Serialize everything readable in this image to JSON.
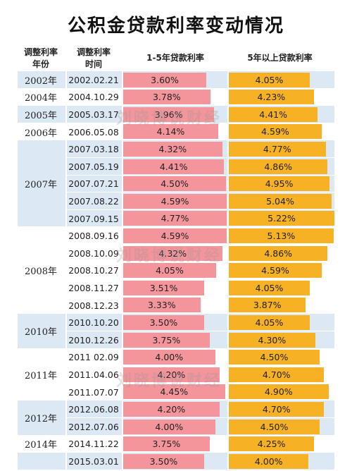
{
  "title": "公积金贷款利率变动情况",
  "headers": {
    "year_line1": "调整利率",
    "year_line2": "年份",
    "date_line1": "调整利率",
    "date_line2": "时间",
    "short": "1-5年贷款利率",
    "long": "5年以上贷款利率"
  },
  "watermark": "刘晓博说财经",
  "colors": {
    "short_bar": "#f4959b",
    "long_bar": "#f7b125",
    "band_blue": "#dce8f3"
  },
  "chart_data": {
    "type": "bar",
    "orientation": "horizontal",
    "title": "公积金贷款利率变动情况",
    "groups": [
      {
        "year": "2002年",
        "rows": [
          0
        ]
      },
      {
        "year": "2004年",
        "rows": [
          1
        ]
      },
      {
        "year": "2005年",
        "rows": [
          2
        ]
      },
      {
        "year": "2006年",
        "rows": [
          3
        ]
      },
      {
        "year": "2007年",
        "rows": [
          4,
          5,
          6,
          7,
          8
        ]
      },
      {
        "year": "2008年",
        "rows": [
          9,
          10,
          11,
          12,
          13
        ]
      },
      {
        "year": "2010年",
        "rows": [
          14,
          15
        ]
      },
      {
        "year": "2011年",
        "rows": [
          16,
          17,
          18
        ]
      },
      {
        "year": "2012年",
        "rows": [
          19,
          20
        ]
      },
      {
        "year": "2014年",
        "rows": [
          21
        ]
      },
      {
        "year": "",
        "rows": [
          22
        ]
      }
    ],
    "categories": [
      "2002.02.21",
      "2004.10.29",
      "2005.03.17",
      "2006.05.08",
      "2007.03.18",
      "2007.05.19",
      "2007.07.21",
      "2007.08.22",
      "2007.09.15",
      "2008.09.16",
      "2008.10.09",
      "2008.10.27",
      "2008.11.27",
      "2008.12.23",
      "2010.10.20",
      "2010.12.26",
      "2011 02.09",
      "2011.04.06",
      "2011.07.07",
      "2012.06.08",
      "2012.07.06",
      "2014.11.22",
      "2015.03.01"
    ],
    "series": [
      {
        "name": "1-5年贷款利率",
        "values": [
          3.6,
          3.78,
          3.96,
          4.14,
          4.32,
          4.41,
          4.5,
          4.59,
          4.77,
          4.59,
          4.32,
          4.05,
          3.51,
          3.33,
          3.5,
          3.75,
          4.0,
          4.2,
          4.45,
          4.2,
          4.0,
          3.75,
          3.5
        ]
      },
      {
        "name": "5年以上贷款利率",
        "values": [
          4.05,
          4.23,
          4.41,
          4.59,
          4.77,
          4.86,
          4.95,
          5.04,
          5.22,
          5.13,
          4.86,
          4.59,
          4.05,
          3.87,
          4.05,
          4.3,
          4.5,
          4.7,
          4.9,
          4.7,
          4.5,
          4.25,
          4.0
        ]
      }
    ],
    "value_labels_short": [
      "3.60%",
      "3.78%",
      "3.96%",
      "4.14%",
      "4.32%",
      "4.41%",
      "4.50%",
      "4.59%",
      "4.77%",
      "4.59%",
      "4.32%",
      "4.05%",
      "3.51%",
      "3.33%",
      "3.50%",
      "3.75%",
      "4.00%",
      "4.20%",
      "4.45%",
      "4.20%",
      "4.00%",
      "3.75%",
      "3.50%"
    ],
    "value_labels_long": [
      "4.05%",
      "4.23%",
      "4.41%",
      "4.59%",
      "4.77%",
      "4.86%",
      "4.95%",
      "5.04%",
      "5.22%",
      "5.13%",
      "4.86%",
      "4.59%",
      "4.05%",
      "3.87%",
      "4.05%",
      "4.30%",
      "4.50%",
      "4.70%",
      "4.90%",
      "4.70%",
      "4.50%",
      "4.25%",
      "4.00%"
    ],
    "grid": false,
    "legend": "none"
  }
}
